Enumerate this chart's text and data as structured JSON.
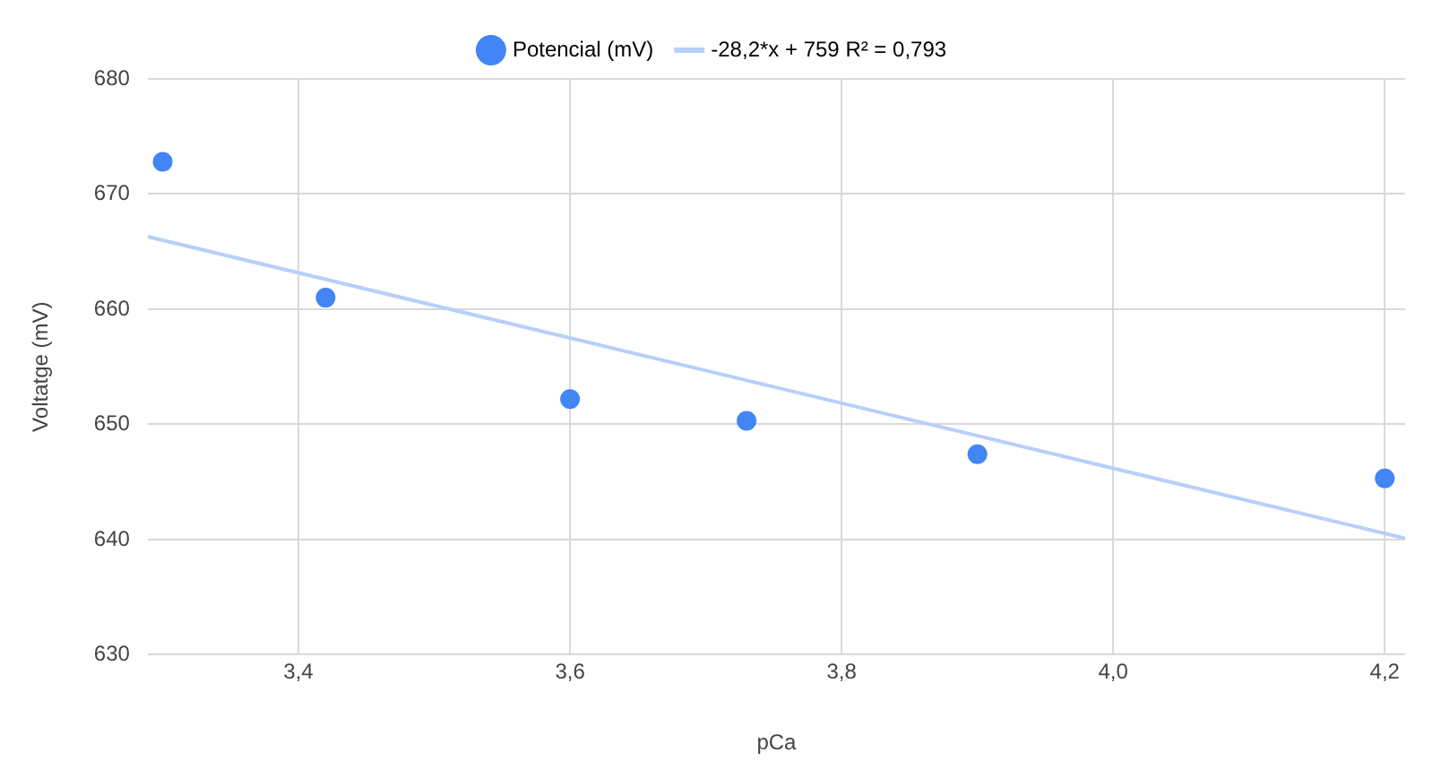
{
  "chart_data": {
    "type": "scatter",
    "xlabel": "pCa",
    "ylabel": "Voltatge (mV)",
    "legend": "top",
    "grid": true,
    "xlim": [
      3.289,
      4.215
    ],
    "xticks": [
      {
        "value": 3.4,
        "label": "3,4"
      },
      {
        "value": 3.6,
        "label": "3,6"
      },
      {
        "value": 3.8,
        "label": "3,8"
      },
      {
        "value": 4.0,
        "label": "4,0"
      },
      {
        "value": 4.2,
        "label": "4,2"
      }
    ],
    "ylim": [
      630,
      680
    ],
    "yticks": [
      630,
      640,
      650,
      660,
      670,
      680
    ],
    "series": [
      {
        "name": "Potencial (mV)",
        "color": "#4285f4",
        "marker": "circle",
        "x": [
          3.3,
          3.42,
          3.6,
          3.73,
          3.9,
          4.2
        ],
        "values": [
          672.8,
          661.0,
          652.2,
          650.3,
          647.4,
          645.3
        ]
      },
      {
        "name": "-28,2*x + 759 R² = 0,793",
        "type": "line",
        "color": "#b7cffb",
        "marker": "none",
        "x": [
          3.289,
          4.215
        ],
        "values": [
          666.3,
          640.1
        ]
      }
    ]
  }
}
